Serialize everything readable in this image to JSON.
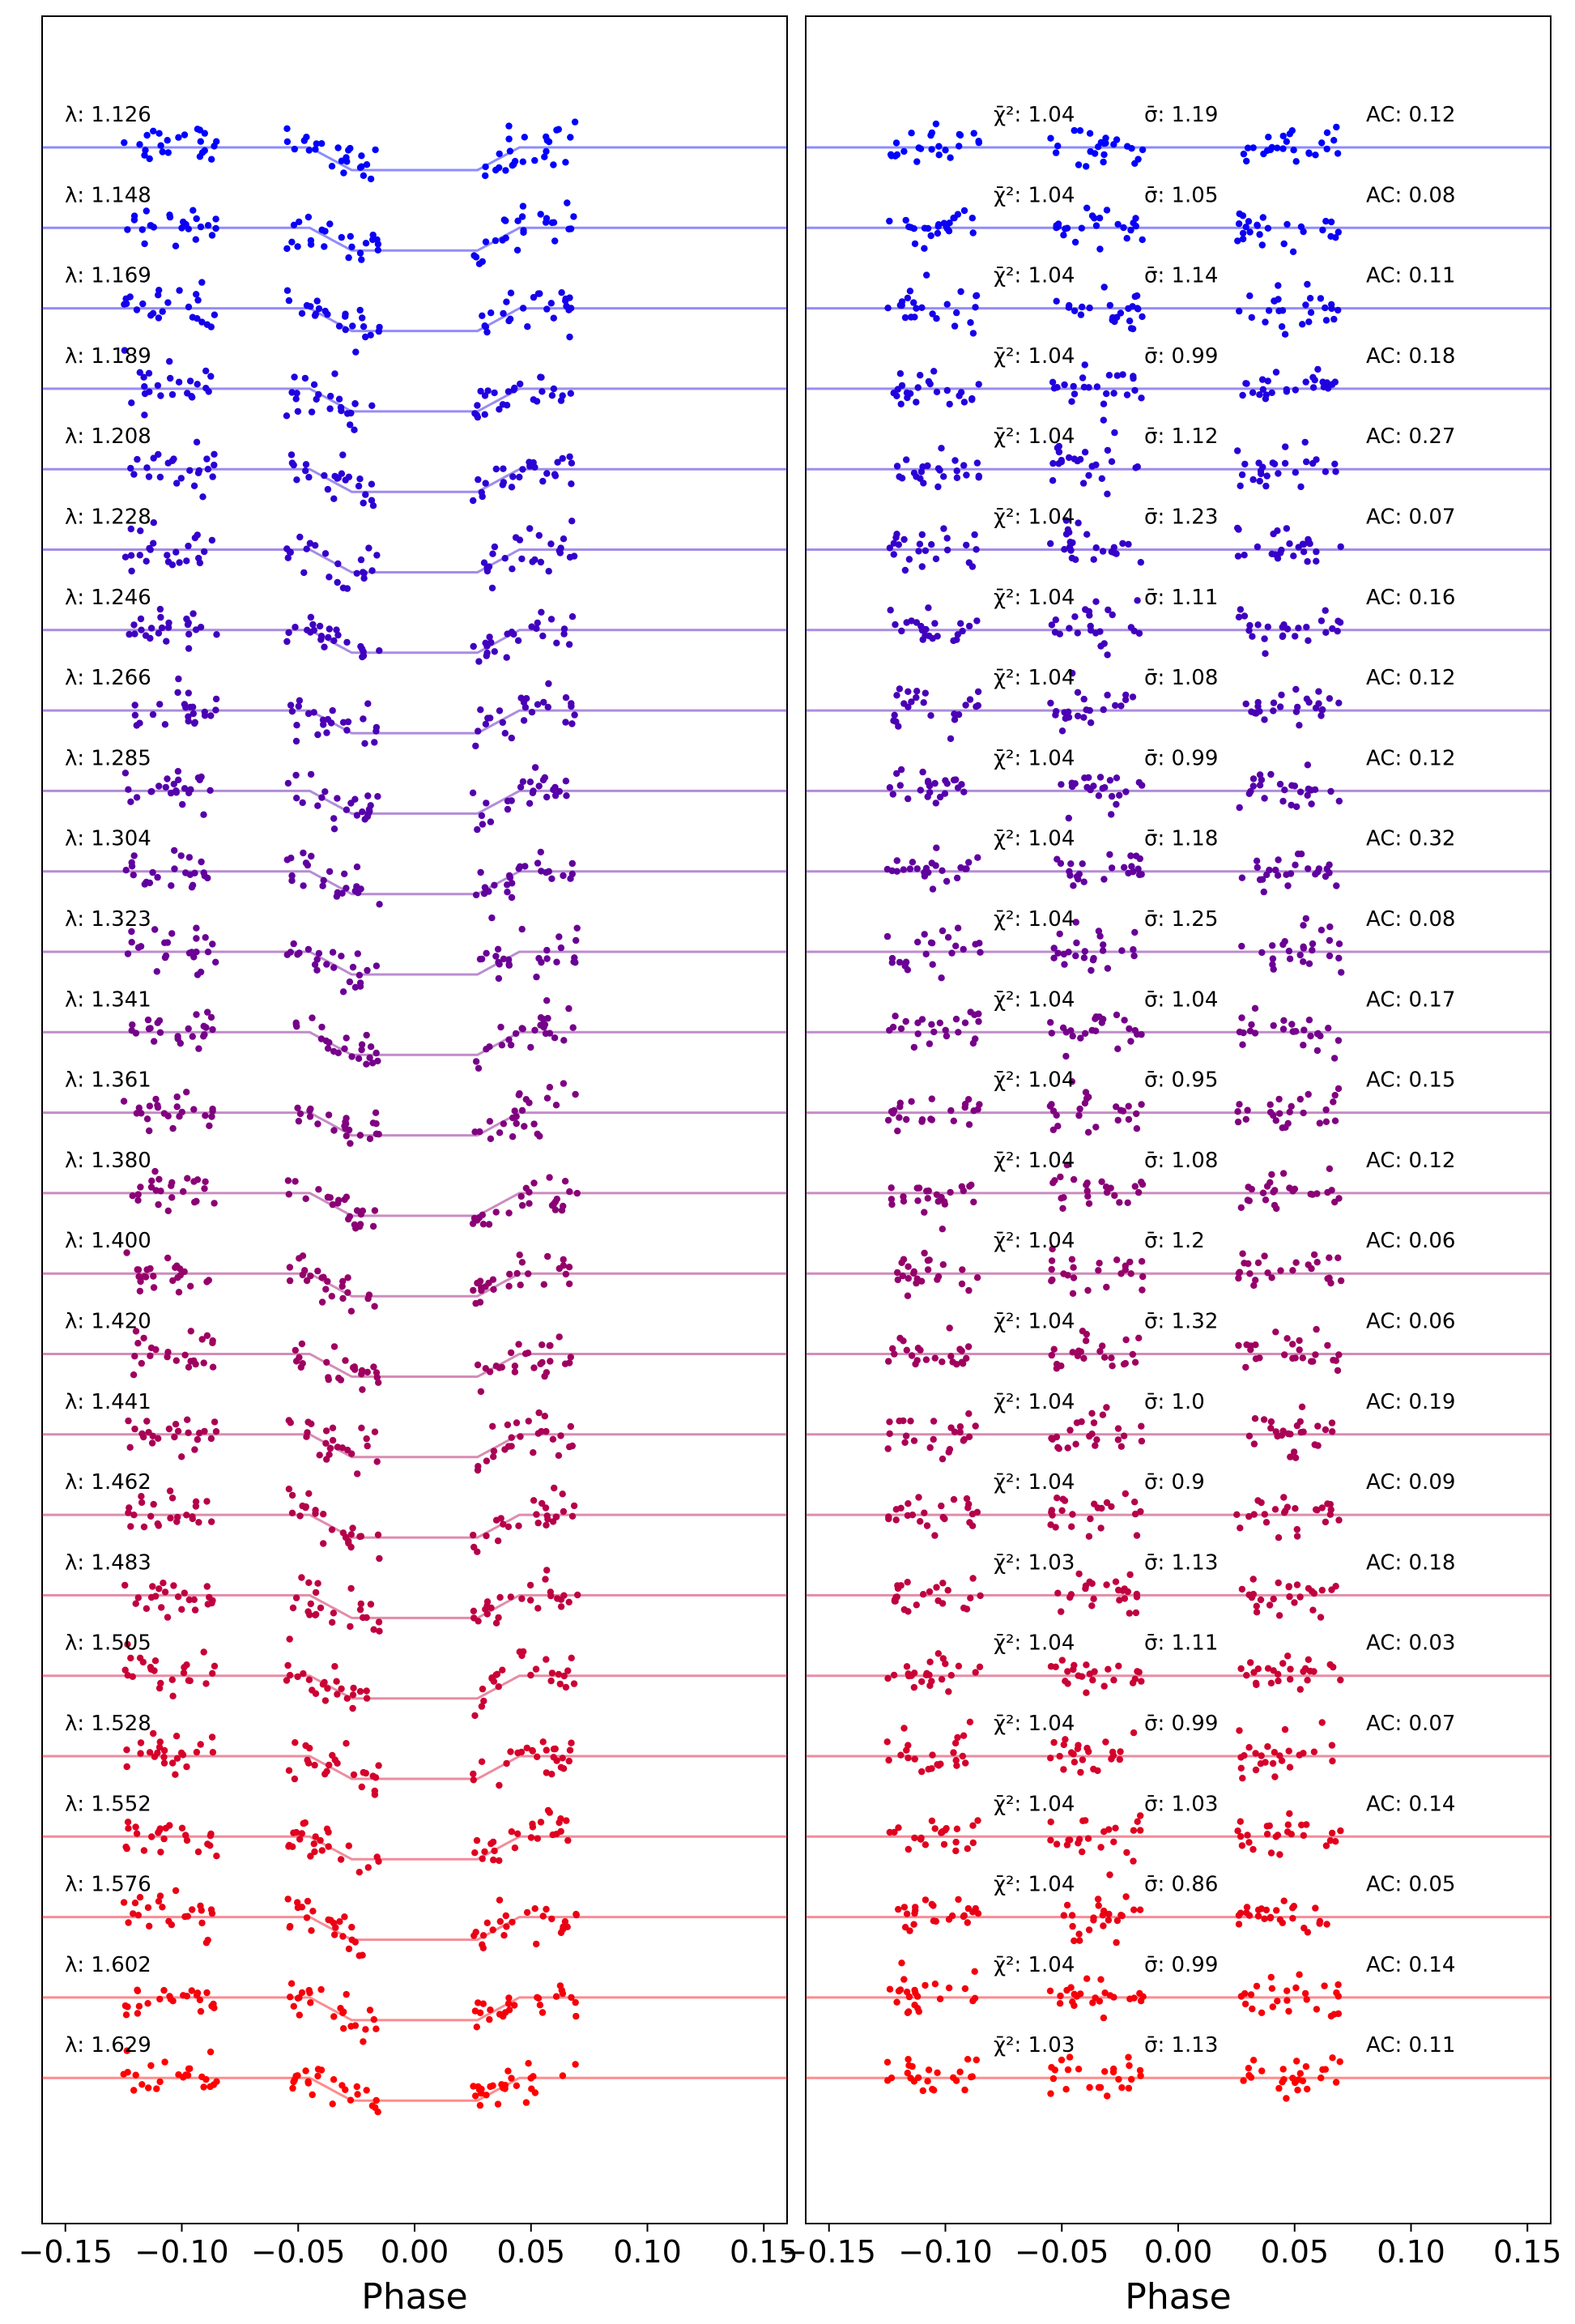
{
  "chart_data": [
    {
      "type": "scatter",
      "panel": "left",
      "xlabel": "Phase",
      "xlim": [
        -0.16,
        0.16
      ],
      "xticks": [
        "−0.15",
        "−0.10",
        "−0.05",
        "0.00",
        "0.05",
        "0.10",
        "0.15"
      ],
      "label_prefix": "λ: ",
      "rows": [
        "1.126",
        "1.148",
        "1.169",
        "1.189",
        "1.208",
        "1.228",
        "1.246",
        "1.266",
        "1.285",
        "1.304",
        "1.323",
        "1.341",
        "1.361",
        "1.380",
        "1.400",
        "1.420",
        "1.441",
        "1.462",
        "1.483",
        "1.505",
        "1.528",
        "1.552",
        "1.576",
        "1.602",
        "1.629"
      ],
      "model": "transit light-curve model with in-transit dip between phase −0.03 and 0.03; scattered points at phase −0.125 to −0.085, −0.055 to −0.015, 0.025 to 0.070"
    },
    {
      "type": "scatter",
      "panel": "right",
      "xlabel": "Phase",
      "xlim": [
        -0.16,
        0.16
      ],
      "xticks": [
        "−0.15",
        "−0.10",
        "−0.05",
        "0.00",
        "0.05",
        "0.10",
        "0.15"
      ],
      "chi_prefix": "χ̄²: ",
      "sigma_prefix": "σ̄: ",
      "ac_prefix": "AC: ",
      "chi2": [
        "1.04",
        "1.04",
        "1.04",
        "1.04",
        "1.04",
        "1.04",
        "1.04",
        "1.04",
        "1.04",
        "1.04",
        "1.04",
        "1.04",
        "1.04",
        "1.04",
        "1.04",
        "1.04",
        "1.04",
        "1.04",
        "1.03",
        "1.04",
        "1.04",
        "1.04",
        "1.04",
        "1.04",
        "1.03"
      ],
      "sigma": [
        "1.19",
        "1.05",
        "1.14",
        "0.99",
        "1.12",
        "1.23",
        "1.11",
        "1.08",
        "0.99",
        "1.18",
        "1.25",
        "1.04",
        "0.95",
        "1.08",
        "1.2",
        "1.32",
        "1.0",
        "0.9",
        "1.13",
        "1.11",
        "0.99",
        "1.03",
        "0.86",
        "0.99",
        "1.13"
      ],
      "ac": [
        "0.12",
        "0.08",
        "0.11",
        "0.18",
        "0.27",
        "0.07",
        "0.16",
        "0.12",
        "0.12",
        "0.32",
        "0.08",
        "0.17",
        "0.15",
        "0.12",
        "0.06",
        "0.06",
        "0.19",
        "0.09",
        "0.18",
        "0.03",
        "0.07",
        "0.14",
        "0.05",
        "0.14",
        "0.11"
      ],
      "model": "residuals around flat line"
    }
  ],
  "colors": {
    "start": "#0000ff",
    "end": "#ff0000"
  }
}
